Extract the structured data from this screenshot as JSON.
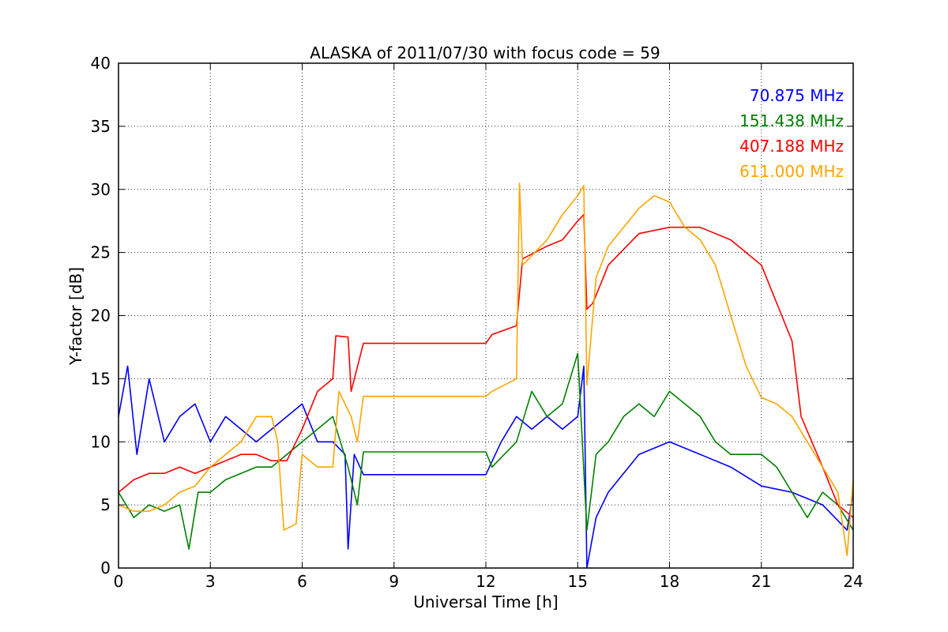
{
  "chart_data": {
    "type": "line",
    "title": "ALASKA of 2011/07/30 with focus code = 59",
    "xlabel": "Universal Time [h]",
    "ylabel": "Y-factor [dB]",
    "xlim": [
      0,
      24
    ],
    "ylim": [
      0,
      40
    ],
    "xticks": [
      0,
      3,
      6,
      9,
      12,
      15,
      18,
      21,
      24
    ],
    "yticks": [
      0,
      5,
      10,
      15,
      20,
      25,
      30,
      35,
      40
    ],
    "grid": true,
    "legend_position": "top-right",
    "series": [
      {
        "name": "70.875 MHz",
        "color": "#0000ff",
        "points": [
          [
            0,
            12
          ],
          [
            0.3,
            16
          ],
          [
            0.6,
            9
          ],
          [
            1,
            15
          ],
          [
            1.5,
            10
          ],
          [
            2,
            12
          ],
          [
            2.5,
            13
          ],
          [
            3,
            10
          ],
          [
            3.5,
            12
          ],
          [
            4,
            11
          ],
          [
            4.5,
            10
          ],
          [
            5,
            11
          ],
          [
            5.5,
            12
          ],
          [
            6,
            13
          ],
          [
            6.5,
            10
          ],
          [
            7,
            10
          ],
          [
            7.4,
            9
          ],
          [
            7.5,
            1.5
          ],
          [
            7.7,
            9
          ],
          [
            8,
            7.4
          ],
          [
            12,
            7.4
          ],
          [
            12.5,
            10
          ],
          [
            13,
            12
          ],
          [
            13.5,
            11
          ],
          [
            14,
            12
          ],
          [
            14.5,
            11
          ],
          [
            15,
            12
          ],
          [
            15.2,
            16
          ],
          [
            15.3,
            0
          ],
          [
            15.6,
            4
          ],
          [
            16,
            6
          ],
          [
            17,
            9
          ],
          [
            18,
            10
          ],
          [
            19,
            9
          ],
          [
            20,
            8
          ],
          [
            21,
            6.5
          ],
          [
            22,
            6
          ],
          [
            23,
            5
          ],
          [
            23.8,
            3
          ],
          [
            24,
            6
          ]
        ]
      },
      {
        "name": "151.438 MHz",
        "color": "#008000",
        "points": [
          [
            0,
            6
          ],
          [
            0.5,
            4
          ],
          [
            1,
            5
          ],
          [
            1.5,
            4.5
          ],
          [
            2,
            5
          ],
          [
            2.3,
            1.5
          ],
          [
            2.6,
            6
          ],
          [
            3,
            6
          ],
          [
            3.5,
            7
          ],
          [
            4,
            7.5
          ],
          [
            4.5,
            8
          ],
          [
            5,
            8
          ],
          [
            5.5,
            9
          ],
          [
            6,
            10
          ],
          [
            6.5,
            11
          ],
          [
            7,
            12
          ],
          [
            7.5,
            8
          ],
          [
            7.8,
            5
          ],
          [
            8,
            9.2
          ],
          [
            12,
            9.2
          ],
          [
            12.2,
            8
          ],
          [
            13,
            10
          ],
          [
            13.5,
            14
          ],
          [
            14,
            12
          ],
          [
            14.5,
            13
          ],
          [
            15,
            17
          ],
          [
            15.3,
            3
          ],
          [
            15.6,
            9
          ],
          [
            16,
            10
          ],
          [
            16.5,
            12
          ],
          [
            17,
            13
          ],
          [
            17.5,
            12
          ],
          [
            18,
            14
          ],
          [
            18.5,
            13
          ],
          [
            19,
            12
          ],
          [
            19.5,
            10
          ],
          [
            20,
            9
          ],
          [
            20.5,
            9
          ],
          [
            21,
            9
          ],
          [
            21.5,
            8
          ],
          [
            22,
            6
          ],
          [
            22.5,
            4
          ],
          [
            23,
            6
          ],
          [
            23.5,
            5
          ],
          [
            24,
            3
          ]
        ]
      },
      {
        "name": "407.188 MHz",
        "color": "#ff0000",
        "points": [
          [
            0,
            6
          ],
          [
            0.5,
            7
          ],
          [
            1,
            7.5
          ],
          [
            1.5,
            7.5
          ],
          [
            2,
            8
          ],
          [
            2.5,
            7.5
          ],
          [
            3,
            8
          ],
          [
            3.5,
            8.5
          ],
          [
            4,
            9
          ],
          [
            4.5,
            9
          ],
          [
            5,
            8.5
          ],
          [
            5.5,
            8.5
          ],
          [
            6,
            11
          ],
          [
            6.5,
            14
          ],
          [
            7,
            15
          ],
          [
            7.1,
            18.4
          ],
          [
            7.5,
            18.3
          ],
          [
            7.6,
            14
          ],
          [
            8,
            17.8
          ],
          [
            12,
            17.8
          ],
          [
            12.2,
            18.5
          ],
          [
            13,
            19.2
          ],
          [
            13.2,
            24.5
          ],
          [
            14,
            25.5
          ],
          [
            14.5,
            26
          ],
          [
            15,
            27.5
          ],
          [
            15.2,
            28
          ],
          [
            15.3,
            20.5
          ],
          [
            15.5,
            21
          ],
          [
            16,
            24
          ],
          [
            17,
            26.5
          ],
          [
            18,
            27
          ],
          [
            19,
            27
          ],
          [
            20,
            26
          ],
          [
            21,
            24
          ],
          [
            21.5,
            21
          ],
          [
            22,
            18
          ],
          [
            22.3,
            12
          ],
          [
            23,
            8
          ],
          [
            23.5,
            5
          ],
          [
            24,
            4
          ]
        ]
      },
      {
        "name": "611.000 MHz",
        "color": "#ffa500",
        "points": [
          [
            0,
            5
          ],
          [
            0.5,
            4.5
          ],
          [
            1,
            4.5
          ],
          [
            1.5,
            5
          ],
          [
            2,
            6
          ],
          [
            2.5,
            6.5
          ],
          [
            3,
            8
          ],
          [
            3.5,
            9
          ],
          [
            4,
            10
          ],
          [
            4.5,
            12
          ],
          [
            5,
            12
          ],
          [
            5.2,
            10
          ],
          [
            5.4,
            3
          ],
          [
            5.8,
            3.5
          ],
          [
            6,
            9
          ],
          [
            6.5,
            8
          ],
          [
            7,
            8
          ],
          [
            7.2,
            14
          ],
          [
            7.6,
            12
          ],
          [
            7.8,
            10
          ],
          [
            8,
            13.6
          ],
          [
            12,
            13.6
          ],
          [
            12.2,
            14
          ],
          [
            13,
            15
          ],
          [
            13.1,
            30.5
          ],
          [
            13.2,
            24
          ],
          [
            14,
            26
          ],
          [
            14.5,
            28
          ],
          [
            15,
            29.5
          ],
          [
            15.2,
            30.3
          ],
          [
            15.3,
            14.5
          ],
          [
            15.6,
            23
          ],
          [
            16,
            25.5
          ],
          [
            17,
            28.5
          ],
          [
            17.5,
            29.5
          ],
          [
            18,
            29
          ],
          [
            18.5,
            27
          ],
          [
            19,
            26
          ],
          [
            19.5,
            24
          ],
          [
            20,
            20
          ],
          [
            20.5,
            16
          ],
          [
            21,
            13.5
          ],
          [
            21.5,
            13
          ],
          [
            22,
            12
          ],
          [
            22.5,
            10
          ],
          [
            23,
            8
          ],
          [
            23.5,
            6
          ],
          [
            23.8,
            1
          ],
          [
            24,
            7
          ]
        ]
      }
    ]
  }
}
